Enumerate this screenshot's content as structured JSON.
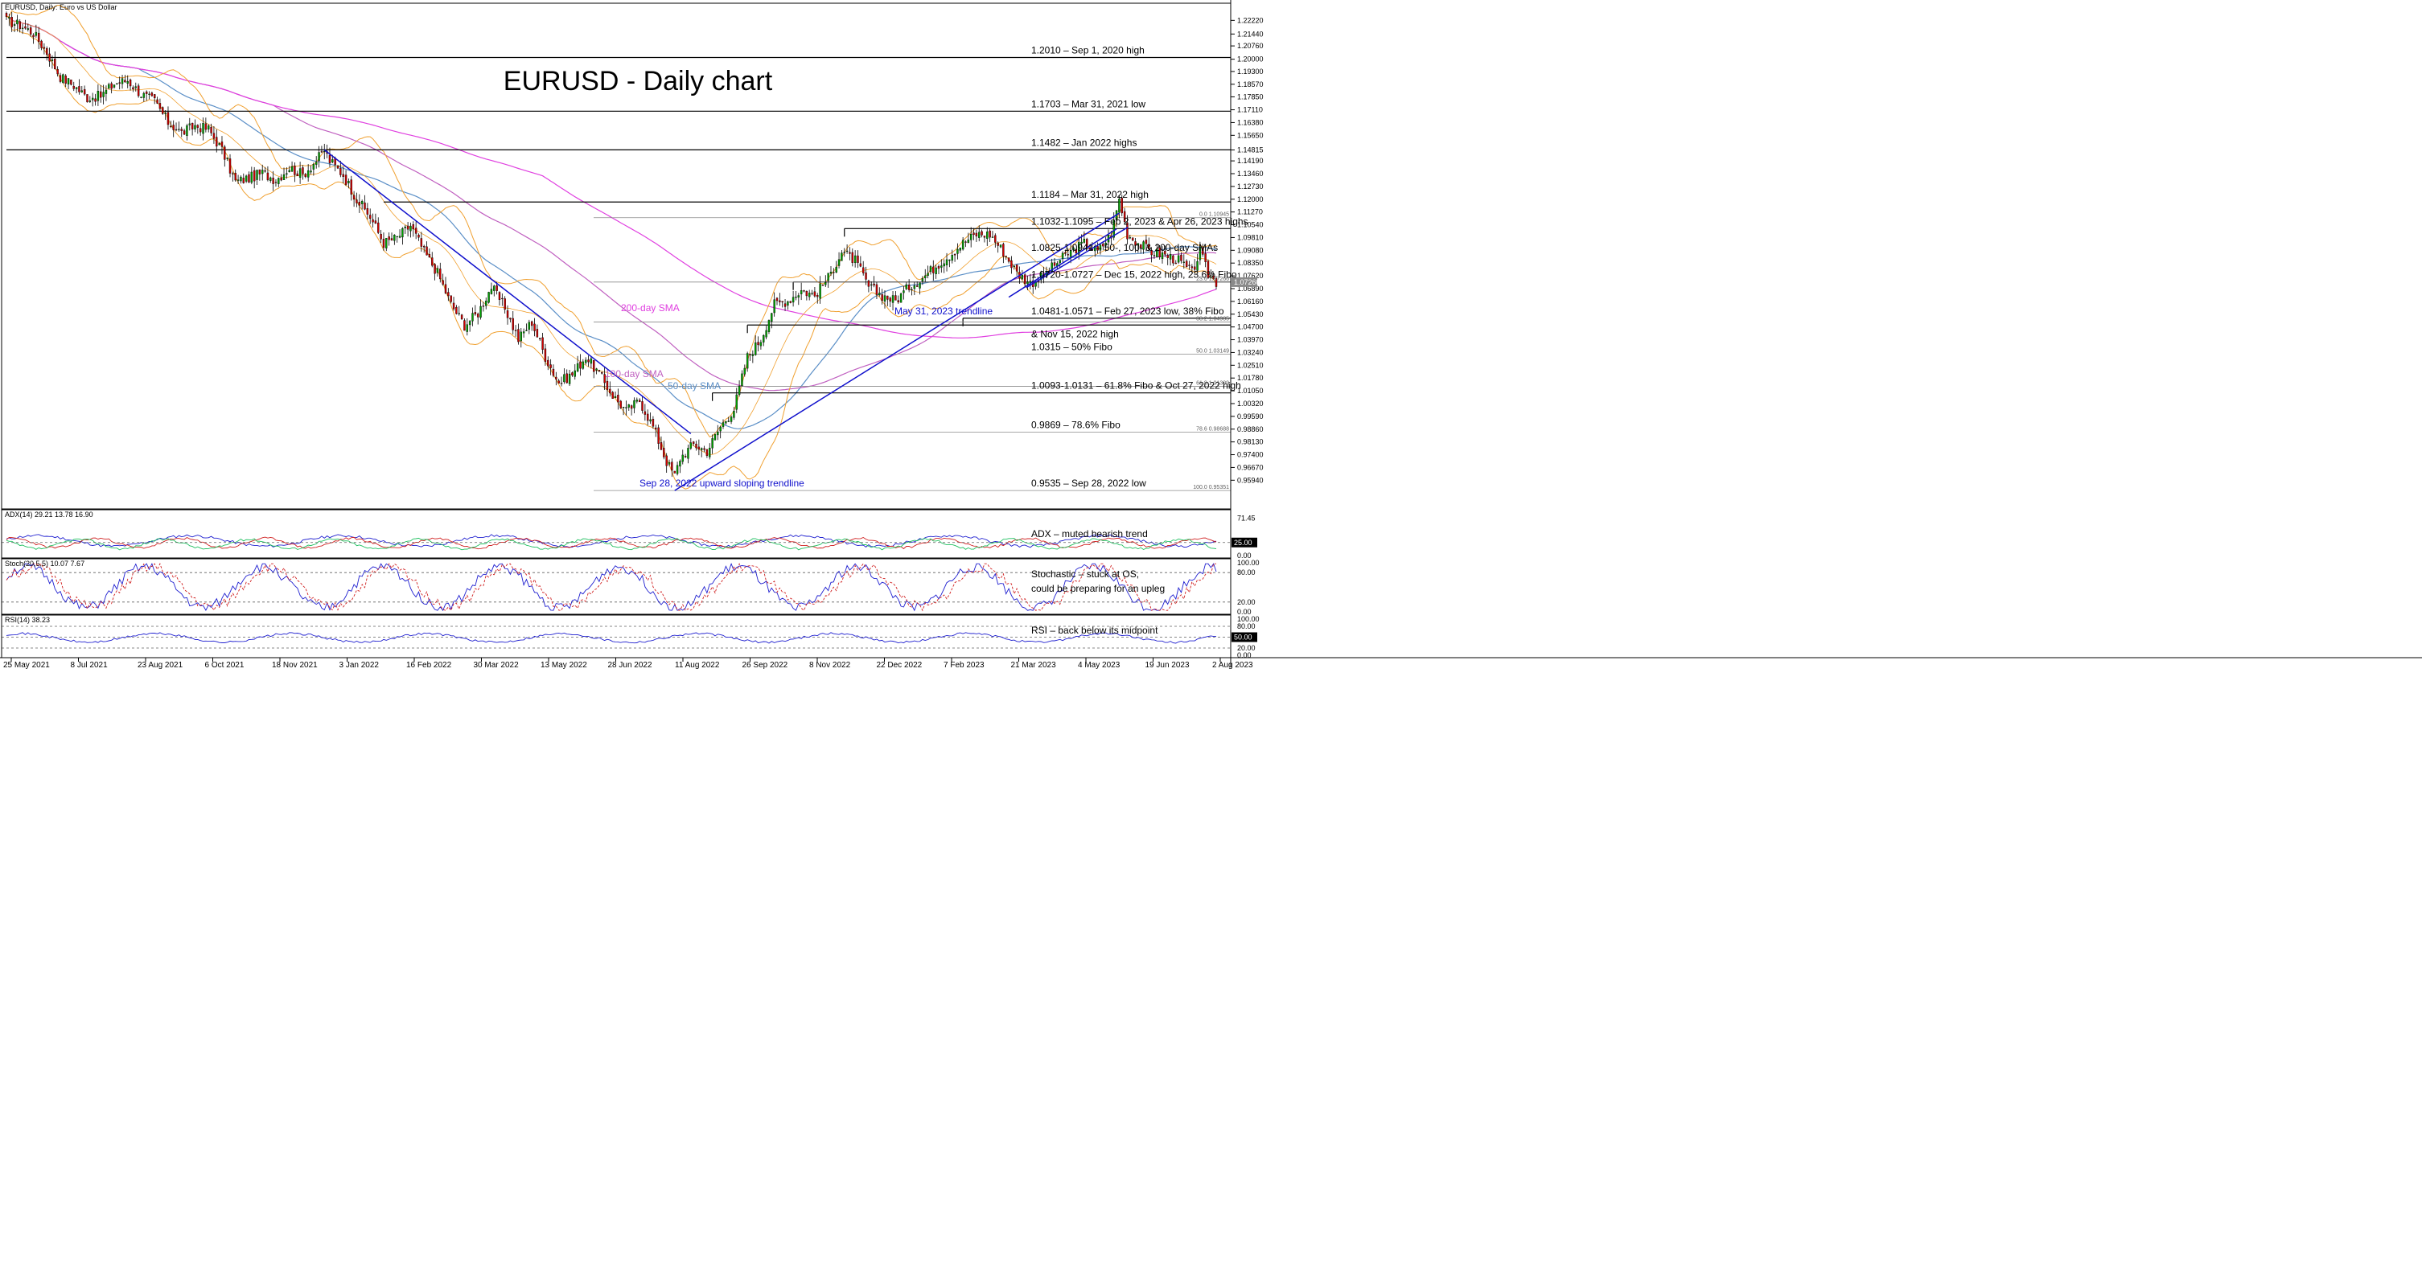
{
  "chart_data": [
    {
      "type": "candlestick",
      "header": "EURUSD, Daily:  Euro vs US Dollar",
      "title": "EURUSD - Daily chart",
      "ylim": [
        0.943,
        1.232
      ],
      "price_ticks": [
        "1.22220",
        "1.21440",
        "1.20760",
        "1.20000",
        "1.19300",
        "1.18570",
        "1.17850",
        "1.17110",
        "1.16380",
        "1.15650",
        "1.14815",
        "1.14190",
        "1.13460",
        "1.12730",
        "1.12000",
        "1.11270",
        "1.10540",
        "1.09810",
        "1.09080",
        "1.08350",
        "1.07620",
        "1.06890",
        "1.06160",
        "1.05430",
        "1.04700",
        "1.03970",
        "1.03240",
        "1.02510",
        "1.01780",
        "1.01050",
        "1.00320",
        "0.99590",
        "0.98860",
        "0.98130",
        "0.97400",
        "0.96670",
        "0.95940"
      ],
      "current_price_label": "1.07260",
      "date_ticks": [
        "25 May 2021",
        "8 Jul 2021",
        "23 Aug 2021",
        "6 Oct 2021",
        "18 Nov 2021",
        "3 Jan 2022",
        "16 Feb 2022",
        "30 Mar 2022",
        "13 May 2022",
        "28 Jun 2022",
        "11 Aug 2022",
        "26 Sep 2022",
        "8 Nov 2022",
        "22 Dec 2022",
        "7 Feb 2023",
        "21 Mar 2023",
        "4 May 2023",
        "19 Jun 2023",
        "2 Aug 2023"
      ],
      "price_path": [
        [
          0,
          1.222
        ],
        [
          5,
          1.2195
        ],
        [
          10,
          1.215
        ],
        [
          15,
          1.204
        ],
        [
          20,
          1.19
        ],
        [
          25,
          1.185
        ],
        [
          30,
          1.178
        ],
        [
          35,
          1.179
        ],
        [
          40,
          1.186
        ],
        [
          45,
          1.188
        ],
        [
          50,
          1.18
        ],
        [
          55,
          1.176
        ],
        [
          60,
          1.164
        ],
        [
          65,
          1.158
        ],
        [
          70,
          1.162
        ],
        [
          75,
          1.16
        ],
        [
          80,
          1.148
        ],
        [
          85,
          1.13
        ],
        [
          90,
          1.132
        ],
        [
          95,
          1.135
        ],
        [
          100,
          1.131
        ],
        [
          105,
          1.138
        ],
        [
          110,
          1.134
        ],
        [
          115,
          1.142
        ],
        [
          118,
          1.148
        ],
        [
          120,
          1.142
        ],
        [
          125,
          1.134
        ],
        [
          130,
          1.12
        ],
        [
          135,
          1.11
        ],
        [
          140,
          1.095
        ],
        [
          145,
          1.098
        ],
        [
          150,
          1.105
        ],
        [
          155,
          1.09
        ],
        [
          160,
          1.078
        ],
        [
          165,
          1.06
        ],
        [
          170,
          1.048
        ],
        [
          175,
          1.055
        ],
        [
          180,
          1.07
        ],
        [
          185,
          1.058
        ],
        [
          190,
          1.04
        ],
        [
          195,
          1.05
        ],
        [
          200,
          1.03
        ],
        [
          205,
          1.015
        ],
        [
          210,
          1.02
        ],
        [
          215,
          1.03
        ],
        [
          220,
          1.02
        ],
        [
          225,
          1.008
        ],
        [
          230,
          0.999
        ],
        [
          235,
          1.005
        ],
        [
          240,
          0.99
        ],
        [
          245,
          0.97
        ],
        [
          248,
          0.962
        ],
        [
          250,
          0.972
        ],
        [
          255,
          0.98
        ],
        [
          260,
          0.976
        ],
        [
          265,
          0.99
        ],
        [
          270,
          1.0
        ],
        [
          275,
          1.03
        ],
        [
          280,
          1.04
        ],
        [
          285,
          1.06
        ],
        [
          290,
          1.062
        ],
        [
          295,
          1.068
        ],
        [
          300,
          1.065
        ],
        [
          305,
          1.075
        ],
        [
          310,
          1.09
        ],
        [
          315,
          1.085
        ],
        [
          320,
          1.07
        ],
        [
          325,
          1.065
        ],
        [
          330,
          1.062
        ],
        [
          335,
          1.07
        ],
        [
          340,
          1.075
        ],
        [
          345,
          1.082
        ],
        [
          350,
          1.088
        ],
        [
          355,
          1.095
        ],
        [
          360,
          1.1
        ],
        [
          365,
          1.1
        ],
        [
          370,
          1.09
        ],
        [
          375,
          1.078
        ],
        [
          380,
          1.072
        ],
        [
          385,
          1.076
        ],
        [
          390,
          1.084
        ],
        [
          395,
          1.09
        ],
        [
          400,
          1.095
        ],
        [
          405,
          1.09
        ],
        [
          410,
          1.1
        ],
        [
          413,
          1.12
        ],
        [
          416,
          1.1
        ],
        [
          420,
          1.095
        ],
        [
          425,
          1.09
        ],
        [
          430,
          1.088
        ],
        [
          435,
          1.085
        ],
        [
          440,
          1.078
        ],
        [
          443,
          1.09
        ],
        [
          446,
          1.077
        ],
        [
          449,
          1.0726
        ]
      ],
      "overlays": {
        "upper_band_color": "#f0a030",
        "lower_band_color": "#f0a030",
        "sma50": {
          "label": "50-day SMA",
          "color": "#5b8fc7"
        },
        "sma100": {
          "label": "100-day SMA",
          "color": "#c060c0"
        },
        "sma200": {
          "label": "200-day SMA",
          "color": "#e040e0"
        },
        "trendline_color": "#1010cc"
      },
      "annotations": [
        {
          "label": "1.2010 – Sep 1, 2020 high",
          "price": 1.201,
          "x_start": 0
        },
        {
          "label": "1.1703 – Mar 31, 2021 low",
          "price": 1.1703,
          "x_start": 0
        },
        {
          "label": "1.1482 – Jan 2022 highs",
          "price": 1.1482,
          "x_start": 0
        },
        {
          "label": "1.1184 – Mar 31, 2022 high",
          "price": 1.1184,
          "x_start": 140
        },
        {
          "label": "1.1032-1.1095 – Feb 2, 2023 & Apr 26, 2023 highs",
          "price": 1.1032,
          "x_start": 311
        },
        {
          "label": "1.0825-1.0941 – 50-, 100- & 200-day SMAs",
          "price": 1.0883,
          "x_start": null
        },
        {
          "label": "1.0720-1.0727 – Dec 15, 2022 high, 23.6% Fibo",
          "price": 1.0727,
          "x_start": 292
        },
        {
          "label": "1.0481-1.0571 – Feb 27, 2023 low, 38% Fibo",
          "price": 1.052,
          "x_start": 355
        },
        {
          "label": "& Nov 15, 2022 high",
          "price": 1.0481,
          "x_start": 275
        },
        {
          "label": "1.0315 – 50% Fibo",
          "price": 1.0315,
          "x_start": null
        },
        {
          "label": "1.0093-1.0131 – 61.8% Fibo & Oct 27, 2022 high",
          "price": 1.0093,
          "x_start": 262
        },
        {
          "label": "0.9869 – 78.6% Fibo",
          "price": 0.9869,
          "x_start": null
        },
        {
          "label": "0.9535 – Sep 28, 2022 low",
          "price": 0.9535,
          "x_start": null
        }
      ],
      "fibo_labels": [
        {
          "label": "0.0  1.10945",
          "price": 1.10945
        },
        {
          "label": "23.6  1.07266",
          "price": 1.07266
        },
        {
          "label": "38.2  1.04985",
          "price": 1.04985
        },
        {
          "label": "50.0  1.03149",
          "price": 1.03149
        },
        {
          "label": "61.8  1.01309",
          "price": 1.01309
        },
        {
          "label": "78.6  0.98688",
          "price": 0.98688
        },
        {
          "label": "100.0  0.95351",
          "price": 0.95351
        }
      ],
      "chart_labels": [
        {
          "label": "200-day SMA"
        },
        {
          "label": "100-day SMA"
        },
        {
          "label": "50-day SMA"
        },
        {
          "label": "May 31, 2023 trendline"
        },
        {
          "label": "Sep 28, 2022 upward sloping trendline"
        }
      ],
      "trendlines": [
        {
          "name": "downtrend",
          "from": [
            118,
            1.1482
          ],
          "to": [
            254,
            0.986
          ]
        },
        {
          "name": "Sep 28, 2022 upward sloping trendline",
          "from": [
            248,
            0.9535
          ],
          "to": [
            413,
            1.112
          ]
        },
        {
          "name": "May 31, 2023 trendline",
          "from": [
            372,
            1.064
          ],
          "to": [
            412,
            1.103
          ]
        }
      ]
    },
    {
      "type": "line",
      "header": "ADX(14) 29.21 13.78 16.90",
      "ylim": [
        0,
        80
      ],
      "ticks": [
        "71.45",
        "25.00",
        "0.00"
      ],
      "level": 25,
      "level_label": "25.00",
      "annotation": "ADX – muted bearish trend",
      "series_colors": [
        "#2020d0",
        "#d02020",
        "#20c060"
      ]
    },
    {
      "type": "line",
      "header": "Stoch(20,5,5) 10.07 7.67",
      "ylim": [
        0,
        100
      ],
      "ticks": [
        "100.00",
        "80.00",
        "20.00",
        "0.00"
      ],
      "levels": [
        80,
        20
      ],
      "annotation_lines": [
        "Stochastic – stuck at OS,",
        "could be preparing for an upleg"
      ],
      "series_colors": [
        "#2020d0",
        "#d02020"
      ]
    },
    {
      "type": "line",
      "header": "RSI(14) 38.23",
      "ylim": [
        0,
        100
      ],
      "ticks": [
        "100.00",
        "80.00",
        "50.00",
        "20.00",
        "0.00"
      ],
      "levels": [
        80,
        50,
        20
      ],
      "level_label": "50.00",
      "annotation": "RSI – back below its midpoint",
      "series_colors": [
        "#2020d0"
      ]
    }
  ]
}
